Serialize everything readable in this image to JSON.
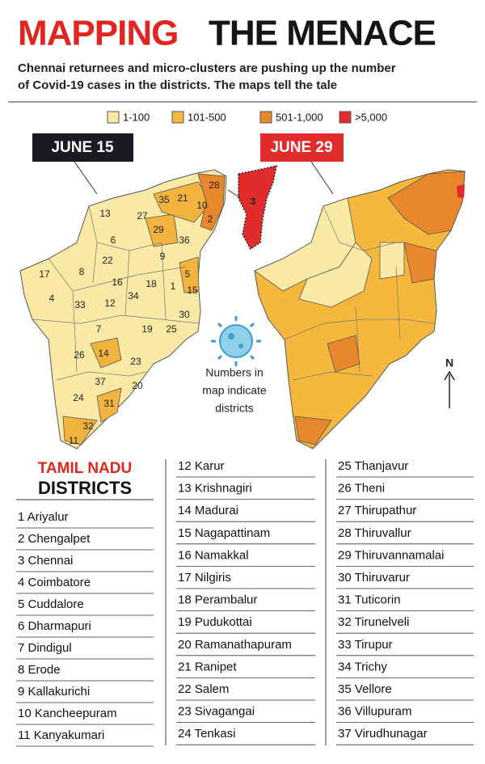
{
  "header": {
    "title_red": "MAPPING",
    "title_black": "THE MENACE",
    "subtitle": [
      "Chennai returnees and micro-clusters are pushing up the number",
      "of Covid-19 cases in the districts. The maps tell the tale"
    ]
  },
  "legend": [
    {
      "label": "1-100",
      "color": "#fbeaa6"
    },
    {
      "label": "101-500",
      "color": "#f5b83d"
    },
    {
      "label": "501-1,000",
      "color": "#e8872c"
    },
    {
      "label": ">5,000",
      "color": "#e22b2b"
    }
  ],
  "maps": {
    "left_date": "JUNE 15",
    "right_date": "JUNE 29",
    "north": "N",
    "note": [
      "Numbers in",
      "map indicate",
      "districts"
    ],
    "district_numbers": [
      "13",
      "27",
      "35",
      "21",
      "10",
      "28",
      "2",
      "29",
      "36",
      "6",
      "22",
      "9",
      "8",
      "17",
      "16",
      "18",
      "1",
      "5",
      "15",
      "4",
      "33",
      "12",
      "34",
      "30",
      "7",
      "19",
      "25",
      "26",
      "14",
      "23",
      "3",
      "37",
      "20",
      "24",
      "31",
      "32",
      "11"
    ]
  },
  "districts": {
    "title_red": "TAMIL NADU",
    "title": "DISTRICTS",
    "columns": [
      [
        "1 Ariyalur",
        "2 Chengalpet",
        "3 Chennai",
        "4 Coimbatore",
        "5 Cuddalore",
        "6 Dharmapuri",
        "7 Dindigul",
        "8 Erode",
        "9 Kallakurichi",
        "10 Kancheepuram",
        "11 Kanyakumari"
      ],
      [
        "12 Karur",
        "13 Krishnagiri",
        "14 Madurai",
        "15 Nagapattinam",
        "16 Namakkal",
        "17 Nilgiris",
        "18 Perambalur",
        "19 Pudukottai",
        "20 Ramanathapuram",
        "21 Ranipet",
        "22 Salem",
        "23 Sivagangai",
        "24 Tenkasi"
      ],
      [
        "25 Thanjavur",
        "26 Theni",
        "27 Thirupathur",
        "28 Thiruvallur",
        "29 Thiruvannamalai",
        "30 Thiruvarur",
        "31 Tuticorin",
        "32 Tirunelveli",
        "33 Tirupur",
        "34 Trichy",
        "35 Vellore",
        "36 Villupuram",
        "37 Virudhunagar"
      ]
    ]
  }
}
